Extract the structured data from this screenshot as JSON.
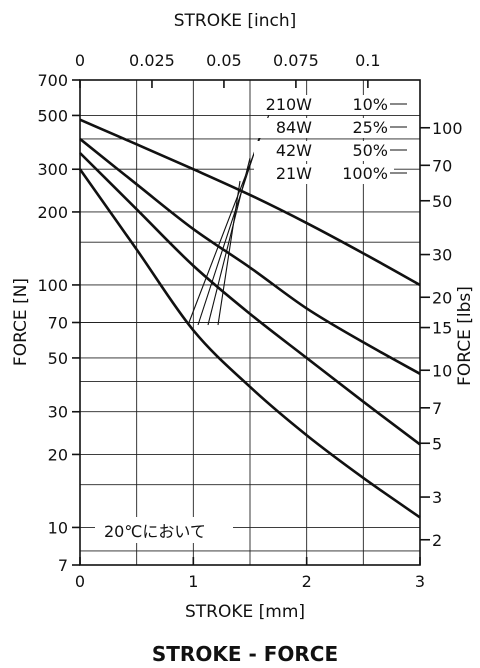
{
  "chart_data": {
    "type": "line",
    "caption": "STROKE - FORCE",
    "x_bottom": {
      "label": "STROKE [mm]",
      "range": [
        0,
        3
      ],
      "ticks": [
        "0",
        "1",
        "2",
        "3"
      ]
    },
    "x_top": {
      "label": "STROKE [inch]",
      "ticks": [
        "0",
        "0.025",
        "0.05",
        "0.075",
        "0.1"
      ]
    },
    "y_left": {
      "label": "FORCE [N]",
      "scale": "log",
      "range": [
        7,
        700
      ],
      "ticks": [
        "7",
        "10",
        "20",
        "30",
        "50",
        "70",
        "100",
        "200",
        "300",
        "500",
        "700"
      ]
    },
    "y_right": {
      "label": "FORCE [lbs]",
      "ticks": [
        "2",
        "3",
        "5",
        "7",
        "10",
        "15",
        "20",
        "30",
        "50",
        "70",
        "100"
      ]
    },
    "annotation": "20℃において",
    "series": [
      {
        "name": "210W 10%",
        "x": [
          0,
          0.5,
          1,
          1.5,
          2,
          2.5,
          3
        ],
        "y": [
          480,
          380,
          300,
          235,
          180,
          135,
          100
        ]
      },
      {
        "name": "84W 25%",
        "x": [
          0,
          0.5,
          1,
          1.5,
          2,
          2.5,
          3
        ],
        "y": [
          400,
          260,
          170,
          118,
          80,
          58,
          43
        ]
      },
      {
        "name": "42W 50%",
        "x": [
          0,
          0.5,
          1,
          1.5,
          2,
          2.5,
          3
        ],
        "y": [
          350,
          205,
          120,
          76,
          50,
          33,
          22
        ]
      },
      {
        "name": "21W 100%",
        "x": [
          0,
          0.5,
          1,
          1.5,
          2,
          2.5,
          3
        ],
        "y": [
          300,
          140,
          65,
          38,
          24,
          16,
          11
        ]
      }
    ]
  }
}
